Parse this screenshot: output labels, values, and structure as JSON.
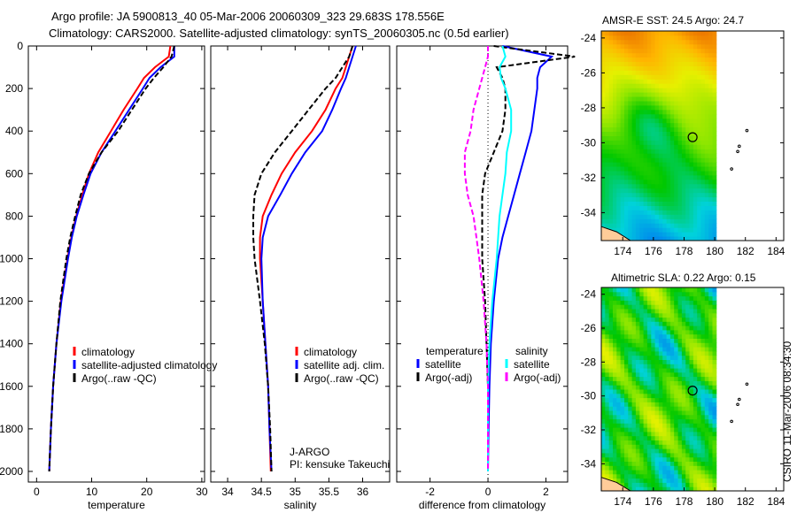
{
  "title": {
    "line1": "Argo profile: JA 5900813_40 05-Mar-2006 20060309_323 29.683S 178.556E",
    "line2": "Climatology: CARS2000. Satellite-adjusted climatology: synTS_20060305.nc (0.5d earlier)"
  },
  "side_label": "CSIRO 11-Mar-2006 08:34:30",
  "colors": {
    "climatology": "#ff0000",
    "satellite": "#0000ff",
    "argo": "#000000",
    "sal_satellite": "#00ffff",
    "sal_argo": "#ff00ff"
  },
  "chart_data": [
    {
      "type": "line",
      "id": "temp",
      "xlabel": "temperature",
      "ylabel": "",
      "xlim": [
        -1.5,
        30.5
      ],
      "ylim": [
        2050,
        0
      ],
      "xticks": [
        "0",
        "10",
        "20",
        "30"
      ],
      "xtick_vals": [
        0,
        10,
        20,
        30
      ],
      "yticks": [
        "0",
        "200",
        "400",
        "600",
        "800",
        "1000",
        "1200",
        "1400",
        "1600",
        "1800",
        "2000"
      ],
      "depth": [
        0,
        50,
        100,
        150,
        200,
        300,
        400,
        500,
        600,
        700,
        800,
        900,
        1000,
        1200,
        1400,
        1600,
        1800,
        2000
      ],
      "series": [
        {
          "name": "climatology",
          "color": "#ff0000",
          "dash": false,
          "values": [
            24.3,
            24.0,
            21.5,
            19.5,
            18.3,
            15.8,
            13.5,
            11.2,
            9.5,
            8.3,
            7.2,
            6.3,
            5.6,
            4.4,
            3.6,
            3.0,
            2.6,
            2.3
          ]
        },
        {
          "name": "satellite-adjusted climatology",
          "color": "#0000ff",
          "dash": false,
          "values": [
            25.0,
            25.0,
            22.5,
            20.5,
            19.3,
            16.8,
            14.3,
            11.8,
            9.8,
            8.5,
            7.3,
            6.4,
            5.7,
            4.5,
            3.6,
            3.0,
            2.6,
            2.3
          ]
        },
        {
          "name": "Argo(..raw -QC)",
          "color": "#000000",
          "dash": true,
          "values": [
            25.0,
            24.5,
            23.0,
            21.3,
            19.8,
            17.3,
            14.8,
            11.8,
            9.5,
            8.0,
            7.0,
            6.1,
            5.4,
            4.3,
            3.6,
            3.0,
            2.6,
            2.3
          ]
        }
      ]
    },
    {
      "type": "line",
      "id": "sal",
      "xlabel": "salinity",
      "xlim": [
        33.75,
        36.4
      ],
      "ylim": [
        2050,
        0
      ],
      "xticks": [
        "34",
        "34.5",
        "35",
        "35.5",
        "36"
      ],
      "xtick_vals": [
        34,
        34.5,
        35,
        35.5,
        36
      ],
      "depth": [
        0,
        50,
        100,
        150,
        200,
        300,
        400,
        500,
        600,
        700,
        800,
        900,
        1000,
        1200,
        1400,
        1600,
        1800,
        2000
      ],
      "series": [
        {
          "name": "climatology",
          "color": "#ff0000",
          "dash": false,
          "values": [
            35.85,
            35.8,
            35.75,
            35.7,
            35.6,
            35.45,
            35.25,
            35.0,
            34.8,
            34.65,
            34.52,
            34.48,
            34.48,
            34.52,
            34.56,
            34.6,
            34.62,
            34.64
          ]
        },
        {
          "name": "satellite adj. clim.",
          "color": "#0000ff",
          "dash": false,
          "values": [
            35.9,
            35.85,
            35.8,
            35.75,
            35.68,
            35.55,
            35.4,
            35.15,
            34.95,
            34.78,
            34.6,
            34.52,
            34.5,
            34.52,
            34.56,
            34.6,
            34.62,
            34.65
          ]
        },
        {
          "name": "Argo(..raw -QC)",
          "color": "#000000",
          "dash": true,
          "values": [
            35.85,
            35.8,
            35.7,
            35.6,
            35.45,
            35.2,
            34.95,
            34.7,
            34.5,
            34.4,
            34.38,
            34.38,
            34.4,
            34.48,
            34.55,
            34.6,
            34.63,
            34.65
          ]
        }
      ],
      "annotation": [
        "J-ARGO",
        "PI: kensuke Takeuchi"
      ]
    },
    {
      "type": "line",
      "id": "diff",
      "xlabel": "difference from climatology",
      "xlim": [
        -3.15,
        2.75
      ],
      "ylim": [
        2050,
        0
      ],
      "xticks": [
        "-2",
        "0",
        "2"
      ],
      "xtick_vals": [
        -2,
        0,
        2
      ],
      "depth": [
        0,
        50,
        100,
        150,
        200,
        300,
        400,
        500,
        600,
        700,
        800,
        900,
        1000,
        1200,
        1400,
        1600,
        1800,
        2000
      ],
      "legend_headers": [
        "temperature",
        "salinity"
      ],
      "series": [
        {
          "name": "satellite",
          "group": "temperature",
          "color": "#0000ff",
          "dash": false,
          "values": [
            0.5,
            2.2,
            1.8,
            1.7,
            1.7,
            1.6,
            1.5,
            1.3,
            1.1,
            0.9,
            0.7,
            0.5,
            0.35,
            0.2,
            0.1,
            0.05,
            0.02,
            0
          ]
        },
        {
          "name": "Argo(-adj)",
          "group": "temperature",
          "color": "#000000",
          "dash": true,
          "values": [
            0.2,
            3.0,
            0.3,
            0.5,
            0.6,
            0.6,
            0.5,
            0.2,
            -0.1,
            -0.2,
            -0.2,
            -0.2,
            -0.2,
            -0.1,
            -0.05,
            0,
            0,
            0
          ]
        },
        {
          "name": "satellite",
          "group": "salinity",
          "color": "#00ffff",
          "dash": false,
          "values": [
            0.5,
            0.6,
            0.4,
            0.45,
            0.6,
            0.8,
            0.8,
            0.65,
            0.6,
            0.5,
            0.4,
            0.35,
            0.3,
            0.15,
            0.05,
            0,
            0,
            0
          ]
        },
        {
          "name": "Argo(-adj)",
          "group": "salinity",
          "color": "#ff00ff",
          "dash": true,
          "values": [
            0,
            0,
            -0.1,
            -0.2,
            -0.3,
            -0.5,
            -0.6,
            -0.8,
            -0.8,
            -0.7,
            -0.5,
            -0.4,
            -0.3,
            -0.15,
            -0.05,
            0,
            0,
            0
          ]
        }
      ]
    },
    {
      "type": "heatmap",
      "id": "sst",
      "title": "AMSR-E SST: 24.5 Argo: 24.7",
      "xlim": [
        172.6,
        184.5
      ],
      "ylim": [
        -35.6,
        -23.6
      ],
      "xticks": [
        "174",
        "176",
        "178",
        "180",
        "182",
        "184"
      ],
      "xtick_vals": [
        174,
        176,
        178,
        180,
        182,
        184
      ],
      "yticks": [
        "-24",
        "-26",
        "-28",
        "-30",
        "-32",
        "-34"
      ],
      "ytick_vals": [
        -24,
        -26,
        -28,
        -30,
        -32,
        -34
      ],
      "profile": {
        "lon": 178.556,
        "lat": -29.683
      }
    },
    {
      "type": "heatmap",
      "id": "sla",
      "title": "Altimetric SLA: 0.22 Argo: 0.15",
      "xlim": [
        172.6,
        184.5
      ],
      "ylim": [
        -35.6,
        -23.6
      ],
      "xticks": [
        "174",
        "176",
        "178",
        "180",
        "182",
        "184"
      ],
      "xtick_vals": [
        174,
        176,
        178,
        180,
        182,
        184
      ],
      "yticks": [
        "-24",
        "-26",
        "-28",
        "-30",
        "-32",
        "-34"
      ],
      "ytick_vals": [
        -24,
        -26,
        -28,
        -30,
        -32,
        -34
      ],
      "profile": {
        "lon": 178.556,
        "lat": -29.683
      }
    }
  ]
}
